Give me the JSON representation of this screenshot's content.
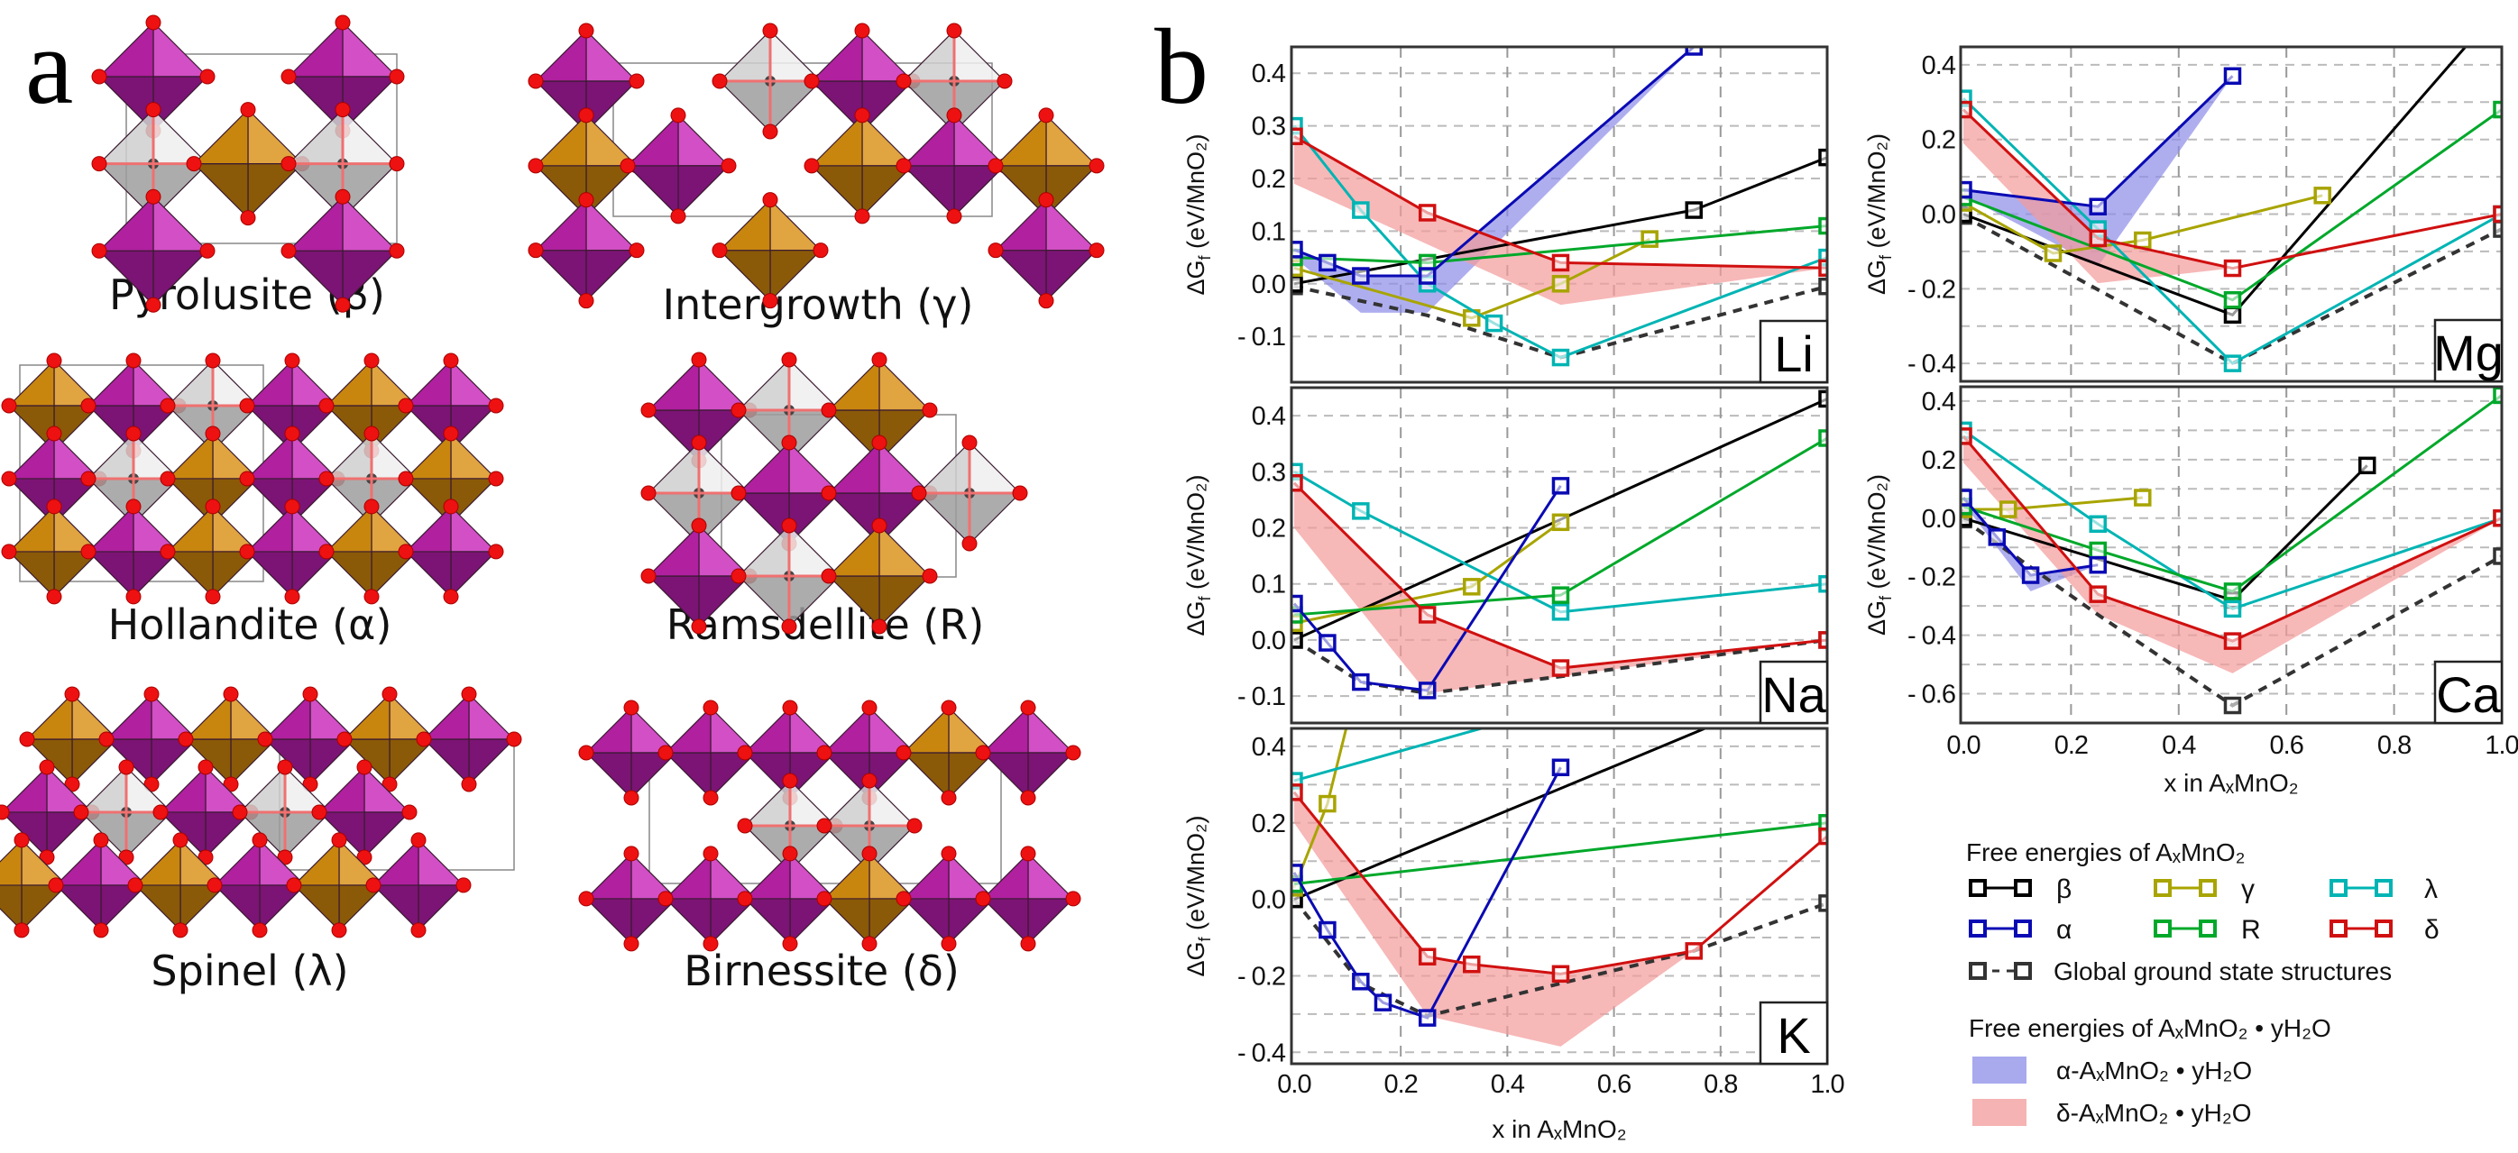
{
  "panel_a": {
    "letter": "a",
    "structures": [
      {
        "id": "pyrolusite",
        "label": "Pyrolusite (β)"
      },
      {
        "id": "intergrowth",
        "label": "Intergrowth (γ)"
      },
      {
        "id": "hollandite",
        "label": "Hollandite (α)"
      },
      {
        "id": "ramsdellite",
        "label": "Ramsdellite (R)"
      },
      {
        "id": "spinel",
        "label": "Spinel (λ)"
      },
      {
        "id": "birnessite",
        "label": "Birnessite (δ)"
      }
    ],
    "colors": {
      "mn_octahedron": "#b0209f",
      "orange_octahedron": "#c8860f",
      "empty_site": "#cfcfcf",
      "oxygen": "#ee1111"
    }
  },
  "chart_data": {
    "type": "line",
    "title": "b",
    "xlabel": "x in AₓMnO₂",
    "ylabel_parts": [
      "ΔG",
      "f",
      " (eV/MnO₂)"
    ],
    "xlim": [
      -0.005,
      1.0
    ],
    "xticks": [
      0.0,
      0.2,
      0.4,
      0.6,
      0.8,
      1.0
    ],
    "grid": true,
    "series_styles": {
      "beta": {
        "label": "β",
        "color": "#000000"
      },
      "gamma": {
        "label": "γ",
        "color": "#a8a400"
      },
      "lambda": {
        "label": "λ",
        "color": "#00b4b4"
      },
      "alpha": {
        "label": "α",
        "color": "#0a0ab4"
      },
      "R": {
        "label": "R",
        "color": "#00a82a"
      },
      "delta": {
        "label": "δ",
        "color": "#d01010"
      },
      "ground": {
        "label": "Global ground state structures",
        "color": "#333333"
      }
    },
    "shade_styles": {
      "alpha": {
        "label": "α-AₓMnO₂ • yH₂O",
        "color": "#8c8ce8"
      },
      "delta": {
        "label": "δ-AₓMnO₂ • yH₂O",
        "color": "#f39a9a"
      }
    },
    "legend": {
      "title1": "Free energies of AₓMnO₂",
      "title2": "Free energies of AₓMnO₂ • yH₂O",
      "placement": "bottom-right"
    },
    "panels": [
      {
        "ion": "Li",
        "ylim": [
          -0.187,
          0.45
        ],
        "yticks": [
          -0.1,
          0.0,
          0.1,
          0.2,
          0.3,
          0.4
        ],
        "series": {
          "beta": [
            [
              0,
              0
            ],
            [
              0.75,
              0.14
            ],
            [
              1,
              0.24
            ]
          ],
          "alpha": [
            [
              0,
              0.065
            ],
            [
              0.0625,
              0.04
            ],
            [
              0.125,
              0.015
            ],
            [
              0.25,
              0.015
            ],
            [
              0.75,
              0.45
            ]
          ],
          "gamma": [
            [
              0,
              0.03
            ],
            [
              0.333,
              -0.065
            ],
            [
              0.5,
              0.0
            ],
            [
              0.667,
              0.085
            ]
          ],
          "lambda": [
            [
              0,
              0.3
            ],
            [
              0.125,
              0.14
            ],
            [
              0.25,
              0.0
            ],
            [
              0.375,
              -0.075
            ],
            [
              0.5,
              -0.14
            ],
            [
              1,
              0.05
            ]
          ],
          "R": [
            [
              0,
              0.05
            ],
            [
              0.25,
              0.04
            ],
            [
              1,
              0.11
            ]
          ],
          "delta": [
            [
              0,
              0.28
            ],
            [
              0.25,
              0.135
            ],
            [
              0.5,
              0.04
            ],
            [
              1,
              0.03
            ]
          ],
          "ground": [
            [
              0,
              -0.005
            ],
            [
              0.25,
              -0.06
            ],
            [
              0.5,
              -0.14
            ],
            [
              1,
              -0.005
            ]
          ]
        },
        "shades": [
          {
            "type": "alpha",
            "upper": [
              [
                0,
                0.065
              ],
              [
                0.0625,
                0.04
              ],
              [
                0.125,
                0.015
              ],
              [
                0.25,
                0.015
              ],
              [
                0.75,
                0.45
              ]
            ],
            "lower": [
              [
                0,
                0.05
              ],
              [
                0.125,
                -0.055
              ],
              [
                0.25,
                -0.055
              ],
              [
                0.75,
                0.45
              ]
            ]
          },
          {
            "type": "delta",
            "upper": [
              [
                0,
                0.28
              ],
              [
                0.25,
                0.135
              ],
              [
                0.5,
                0.04
              ],
              [
                1,
                0.03
              ]
            ],
            "lower": [
              [
                0,
                0.19
              ],
              [
                0.5,
                -0.04
              ],
              [
                1,
                0.03
              ]
            ]
          }
        ]
      },
      {
        "ion": "Na",
        "ylim": [
          -0.148,
          0.45
        ],
        "yticks": [
          -0.1,
          0.0,
          0.1,
          0.2,
          0.3,
          0.4
        ],
        "series": {
          "beta": [
            [
              0,
              0
            ],
            [
              1,
              0.43
            ]
          ],
          "alpha": [
            [
              0,
              0.065
            ],
            [
              0.0625,
              -0.005
            ],
            [
              0.125,
              -0.075
            ],
            [
              0.25,
              -0.09
            ],
            [
              0.5,
              0.275
            ]
          ],
          "gamma": [
            [
              0,
              0.03
            ],
            [
              0.333,
              0.095
            ],
            [
              0.5,
              0.21
            ]
          ],
          "lambda": [
            [
              0,
              0.3
            ],
            [
              0.125,
              0.23
            ],
            [
              0.5,
              0.05
            ],
            [
              1,
              0.1
            ]
          ],
          "R": [
            [
              0,
              0.045
            ],
            [
              0.5,
              0.08
            ],
            [
              1,
              0.36
            ]
          ],
          "delta": [
            [
              0,
              0.28
            ],
            [
              0.25,
              0.045
            ],
            [
              0.5,
              -0.05
            ],
            [
              1,
              0.0
            ]
          ],
          "ground": [
            [
              0,
              0
            ],
            [
              0.125,
              -0.075
            ],
            [
              0.25,
              -0.095
            ],
            [
              0.5,
              -0.065
            ],
            [
              1,
              0.0
            ]
          ]
        },
        "shades": [
          {
            "type": "delta",
            "upper": [
              [
                0,
                0.28
              ],
              [
                0.25,
                0.045
              ],
              [
                0.5,
                -0.05
              ],
              [
                1,
                0.0
              ]
            ],
            "lower": [
              [
                0,
                0.2
              ],
              [
                0.25,
                -0.095
              ],
              [
                0.5,
                -0.065
              ],
              [
                1,
                0.0
              ]
            ]
          }
        ]
      },
      {
        "ion": "K",
        "ylim": [
          -0.43,
          0.447
        ],
        "yticks": [
          -0.4,
          -0.2,
          0.0,
          0.2,
          0.4
        ],
        "series": {
          "beta": [
            [
              0,
              0
            ],
            [
              1,
              0.58
            ]
          ],
          "alpha": [
            [
              0,
              0.07
            ],
            [
              0.0625,
              -0.08
            ],
            [
              0.125,
              -0.215
            ],
            [
              0.1667,
              -0.27
            ],
            [
              0.25,
              -0.31
            ],
            [
              0.5,
              0.345
            ]
          ],
          "gamma": [
            [
              0,
              0.03
            ],
            [
              0.0625,
              0.25
            ],
            [
              0.125,
              0.6
            ]
          ],
          "lambda": [
            [
              0,
              0.31
            ],
            [
              1,
              0.7
            ]
          ],
          "R": [
            [
              0,
              0.04
            ],
            [
              1,
              0.2
            ]
          ],
          "delta": [
            [
              0,
              0.28
            ],
            [
              0.25,
              -0.15
            ],
            [
              0.333,
              -0.17
            ],
            [
              0.5,
              -0.195
            ],
            [
              0.75,
              -0.135
            ],
            [
              1,
              0.165
            ]
          ],
          "ground": [
            [
              0,
              0
            ],
            [
              0.125,
              -0.22
            ],
            [
              0.25,
              -0.305
            ],
            [
              0.75,
              -0.135
            ],
            [
              1,
              -0.01
            ]
          ]
        },
        "shades": [
          {
            "type": "delta",
            "upper": [
              [
                0,
                0.28
              ],
              [
                0.25,
                -0.15
              ],
              [
                0.333,
                -0.17
              ],
              [
                0.5,
                -0.195
              ],
              [
                0.75,
                -0.135
              ],
              [
                1,
                0.165
              ]
            ],
            "lower": [
              [
                0,
                0.2
              ],
              [
                0.25,
                -0.305
              ],
              [
                0.5,
                -0.385
              ],
              [
                0.75,
                -0.135
              ],
              [
                1,
                0.165
              ]
            ]
          }
        ]
      },
      {
        "ion": "Mg",
        "ylim": [
          -0.448,
          0.448
        ],
        "yticks": [
          -0.4,
          -0.2,
          0.0,
          0.2,
          0.4
        ],
        "series": {
          "beta": [
            [
              0,
              0
            ],
            [
              0.5,
              -0.27
            ],
            [
              1,
              0.56
            ]
          ],
          "alpha": [
            [
              0,
              0.065
            ],
            [
              0.25,
              0.02
            ],
            [
              0.5,
              0.37
            ]
          ],
          "gamma": [
            [
              0,
              0.03
            ],
            [
              0.1667,
              -0.105
            ],
            [
              0.333,
              -0.07
            ],
            [
              0.667,
              0.05
            ]
          ],
          "lambda": [
            [
              0,
              0.31
            ],
            [
              0.25,
              -0.04
            ],
            [
              0.5,
              -0.4
            ],
            [
              1,
              0.0
            ]
          ],
          "R": [
            [
              0,
              0.045
            ],
            [
              0.5,
              -0.23
            ],
            [
              1,
              0.28
            ]
          ],
          "delta": [
            [
              0,
              0.28
            ],
            [
              0.25,
              -0.065
            ],
            [
              0.5,
              -0.145
            ],
            [
              1,
              0.0
            ]
          ],
          "ground": [
            [
              0,
              -0.005
            ],
            [
              0.5,
              -0.4
            ],
            [
              1,
              -0.04
            ]
          ]
        },
        "shades": [
          {
            "type": "alpha",
            "upper": [
              [
                0,
                0.065
              ],
              [
                0.25,
                0.02
              ],
              [
                0.5,
                0.37
              ]
            ],
            "lower": [
              [
                0,
                0.05
              ],
              [
                0.25,
                -0.14
              ],
              [
                0.5,
                0.37
              ]
            ]
          },
          {
            "type": "delta",
            "upper": [
              [
                0,
                0.28
              ],
              [
                0.25,
                -0.065
              ],
              [
                0.5,
                -0.145
              ]
            ],
            "lower": [
              [
                0,
                0.19
              ],
              [
                0.25,
                -0.185
              ],
              [
                0.5,
                -0.145
              ]
            ]
          }
        ]
      },
      {
        "ion": "Ca",
        "ylim": [
          -0.7,
          0.449
        ],
        "yticks": [
          -0.6,
          -0.4,
          -0.2,
          0.0,
          0.2,
          0.4
        ],
        "series": {
          "beta": [
            [
              0,
              0
            ],
            [
              0.5,
              -0.28
            ],
            [
              0.75,
              0.18
            ]
          ],
          "alpha": [
            [
              0,
              0.07
            ],
            [
              0.0625,
              -0.065
            ],
            [
              0.125,
              -0.195
            ],
            [
              0.25,
              -0.16
            ]
          ],
          "gamma": [
            [
              0,
              0.03
            ],
            [
              0.0833,
              0.03
            ],
            [
              0.333,
              0.07
            ]
          ],
          "lambda": [
            [
              0,
              0.3
            ],
            [
              0.25,
              -0.02
            ],
            [
              0.5,
              -0.31
            ],
            [
              1,
              0.0
            ]
          ],
          "R": [
            [
              0,
              0.04
            ],
            [
              0.25,
              -0.11
            ],
            [
              0.5,
              -0.25
            ],
            [
              1,
              0.42
            ]
          ],
          "delta": [
            [
              0,
              0.28
            ],
            [
              0.25,
              -0.26
            ],
            [
              0.5,
              -0.42
            ],
            [
              1,
              0.0
            ]
          ],
          "ground": [
            [
              0,
              -0.005
            ],
            [
              0.25,
              -0.33
            ],
            [
              0.5,
              -0.64
            ],
            [
              1,
              -0.13
            ]
          ]
        },
        "shades": [
          {
            "type": "alpha",
            "upper": [
              [
                0,
                0.07
              ],
              [
                0.0625,
                -0.065
              ],
              [
                0.125,
                -0.195
              ],
              [
                0.25,
                -0.16
              ]
            ],
            "lower": [
              [
                0,
                0.05
              ],
              [
                0.125,
                -0.25
              ],
              [
                0.25,
                -0.16
              ]
            ]
          },
          {
            "type": "delta",
            "upper": [
              [
                0,
                0.28
              ],
              [
                0.25,
                -0.26
              ],
              [
                0.5,
                -0.42
              ],
              [
                1,
                0.0
              ]
            ],
            "lower": [
              [
                0,
                0.19
              ],
              [
                0.25,
                -0.33
              ],
              [
                0.5,
                -0.53
              ],
              [
                1,
                0.0
              ]
            ]
          }
        ]
      }
    ]
  }
}
